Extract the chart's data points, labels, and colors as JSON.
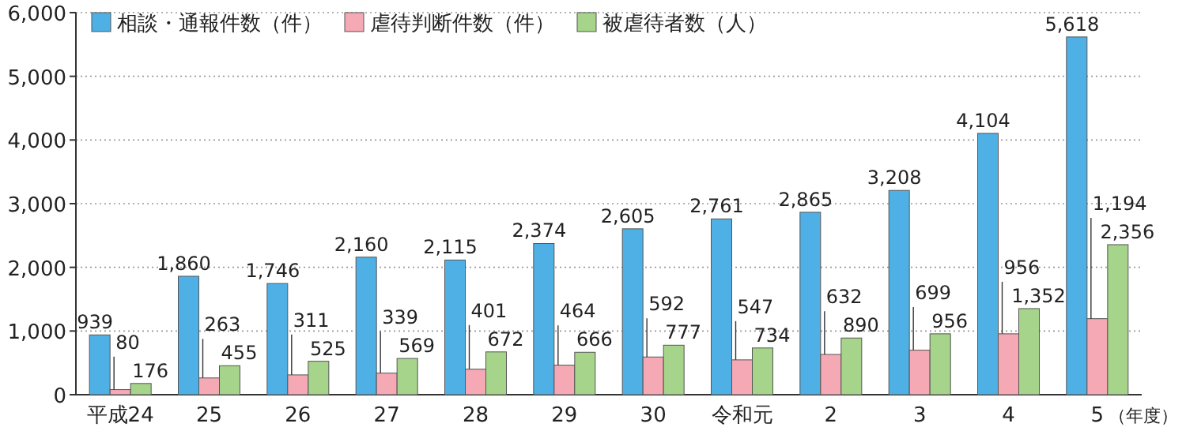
{
  "chart_data": {
    "type": "bar",
    "categories": [
      "平成24",
      "25",
      "26",
      "27",
      "28",
      "29",
      "30",
      "令和元",
      "2",
      "3",
      "4",
      "5"
    ],
    "xlabel": "（年度）",
    "series": [
      {
        "name": "相談・通報件数（件）",
        "color": "#4fb0e6",
        "values": [
          939,
          1860,
          1746,
          2160,
          2115,
          2374,
          2605,
          2761,
          2865,
          3208,
          4104,
          5618
        ],
        "value_labels": [
          "939",
          "1,860",
          "1,746",
          "2,160",
          "2,115",
          "2,374",
          "2,605",
          "2,761",
          "2,865",
          "3,208",
          "4,104",
          "5,618"
        ]
      },
      {
        "name": "虐待判断件数（件）",
        "color": "#f5a9b4",
        "values": [
          80,
          263,
          311,
          339,
          401,
          464,
          592,
          547,
          632,
          699,
          956,
          1194
        ],
        "value_labels": [
          "80",
          "263",
          "311",
          "339",
          "401",
          "464",
          "592",
          "547",
          "632",
          "699",
          "956",
          "1,194"
        ]
      },
      {
        "name": "被虐待者数（人）",
        "color": "#a6d48a",
        "values": [
          176,
          455,
          525,
          569,
          672,
          666,
          777,
          734,
          890,
          956,
          1352,
          2356
        ],
        "value_labels": [
          "176",
          "455",
          "525",
          "569",
          "672",
          "666",
          "777",
          "734",
          "890",
          "956",
          "1,352",
          "2,356"
        ]
      }
    ],
    "ylim": [
      0,
      6000
    ],
    "yticks": [
      0,
      {
        "value": 1000,
        "label": "1,000"
      },
      {
        "value": 2000,
        "label": "2,000"
      },
      {
        "value": 3000,
        "label": "3,000"
      },
      {
        "value": 4000,
        "label": "4,000"
      },
      {
        "value": 5000,
        "label": "5,000"
      },
      {
        "value": 6000,
        "label": "6,000"
      }
    ],
    "grid": "y",
    "legend": "top left"
  }
}
